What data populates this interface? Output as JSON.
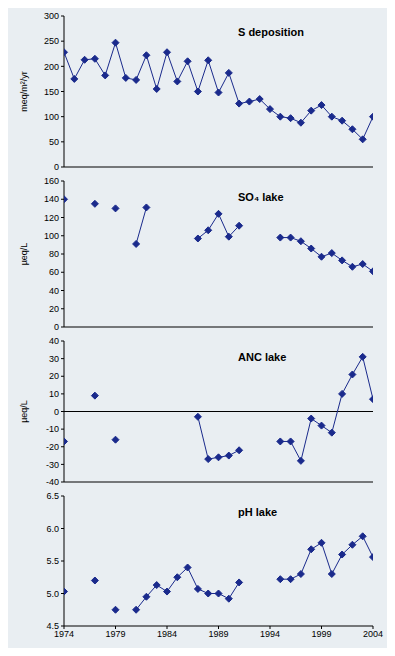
{
  "chart_data": [
    {
      "type": "line",
      "title": "S deposition",
      "y_label": "meq/m²/yr",
      "color": "#1a2a8c",
      "marker": "diamond",
      "line_style": "solid",
      "tick_labels": "y",
      "x": [
        1974,
        1975,
        1976,
        1977,
        1978,
        1979,
        1980,
        1981,
        1982,
        1983,
        1984,
        1985,
        1986,
        1987,
        1988,
        1989,
        1990,
        1991,
        1992,
        1993,
        1994,
        1995,
        1996,
        1997,
        1998,
        1999,
        2000,
        2001,
        2002,
        2003,
        2004
      ],
      "values": [
        228,
        175,
        213,
        215,
        182,
        247,
        177,
        173,
        222,
        155,
        228,
        170,
        210,
        150,
        212,
        148,
        187,
        126,
        130,
        135,
        115,
        100,
        97,
        88,
        112,
        123,
        100,
        92,
        75,
        55,
        100
      ],
      "xlim": [
        1974,
        2004
      ],
      "xticks": [
        1974,
        1979,
        1984,
        1989,
        1994,
        1999,
        2004
      ],
      "ylim": [
        0,
        300
      ],
      "yticks": [
        0,
        50,
        100,
        150,
        200,
        250,
        300
      ]
    },
    {
      "type": "line",
      "title": "SO₄ lake",
      "y_label": "µeq/L",
      "color": "#1a2a8c",
      "marker": "diamond",
      "line_style": "solid",
      "tick_labels": "y",
      "x": [
        1974,
        1975,
        1976,
        1977,
        1978,
        1979,
        1980,
        1981,
        1982,
        1983,
        1984,
        1985,
        1986,
        1987,
        1988,
        1989,
        1990,
        1991,
        1992,
        1993,
        1994,
        1995,
        1996,
        1997,
        1998,
        1999,
        2000,
        2001,
        2002,
        2003,
        2004
      ],
      "values": [
        140,
        null,
        null,
        135,
        null,
        130,
        null,
        91,
        131,
        null,
        null,
        null,
        null,
        97,
        106,
        124,
        99,
        111,
        null,
        null,
        null,
        98,
        98,
        94,
        86,
        77,
        81,
        73,
        66,
        69,
        61
      ],
      "xlim": [
        1974,
        2004
      ],
      "xticks": [
        1974,
        1979,
        1984,
        1989,
        1994,
        1999,
        2004
      ],
      "ylim": [
        0,
        160
      ],
      "yticks": [
        0,
        20,
        40,
        60,
        80,
        100,
        120,
        140,
        160
      ]
    },
    {
      "type": "line",
      "title": "ANC lake",
      "y_label": "µeq/L",
      "color": "#1a2a8c",
      "marker": "diamond",
      "line_style": "solid",
      "tick_labels": "y",
      "x": [
        1974,
        1975,
        1976,
        1977,
        1978,
        1979,
        1980,
        1981,
        1982,
        1983,
        1984,
        1985,
        1986,
        1987,
        1988,
        1989,
        1990,
        1991,
        1992,
        1993,
        1994,
        1995,
        1996,
        1997,
        1998,
        1999,
        2000,
        2001,
        2002,
        2003,
        2004
      ],
      "values": [
        -17,
        null,
        null,
        9,
        null,
        -16,
        null,
        null,
        null,
        null,
        null,
        null,
        null,
        -3,
        -27,
        -26,
        -25,
        -22,
        null,
        null,
        null,
        -17,
        -17,
        -28,
        -4,
        -8,
        -12,
        10,
        21,
        31,
        7
      ],
      "xlim": [
        1974,
        2004
      ],
      "xticks": [
        1974,
        1979,
        1984,
        1989,
        1994,
        1999,
        2004
      ],
      "ylim": [
        -40,
        40
      ],
      "yticks": [
        -40,
        -30,
        -20,
        -10,
        0,
        10,
        20,
        30,
        40
      ]
    },
    {
      "type": "line",
      "title": "pH lake",
      "color": "#1a2a8c",
      "marker": "diamond",
      "line_style": "solid",
      "x": [
        1974,
        1975,
        1976,
        1977,
        1978,
        1979,
        1980,
        1981,
        1982,
        1983,
        1984,
        1985,
        1986,
        1987,
        1988,
        1989,
        1990,
        1991,
        1992,
        1993,
        1994,
        1995,
        1996,
        1997,
        1998,
        1999,
        2000,
        2001,
        2002,
        2003,
        2004
      ],
      "values": [
        5.03,
        null,
        null,
        5.2,
        null,
        4.75,
        null,
        4.75,
        4.95,
        5.13,
        5.03,
        5.25,
        5.4,
        5.07,
        5.0,
        5.0,
        4.92,
        5.17,
        null,
        null,
        null,
        5.22,
        5.22,
        5.3,
        5.68,
        5.78,
        5.3,
        5.6,
        5.75,
        5.88,
        5.56
      ],
      "xlim": [
        1974,
        2004
      ],
      "xticks": [
        1974,
        1979,
        1984,
        1989,
        1994,
        1999,
        2004
      ],
      "ylim": [
        4.5,
        6.5
      ],
      "yticks": [
        4.5,
        {
          "value": 5,
          "label": "5.0"
        },
        5.5,
        {
          "value": 6,
          "label": "6.0"
        },
        6.5
      ]
    }
  ]
}
